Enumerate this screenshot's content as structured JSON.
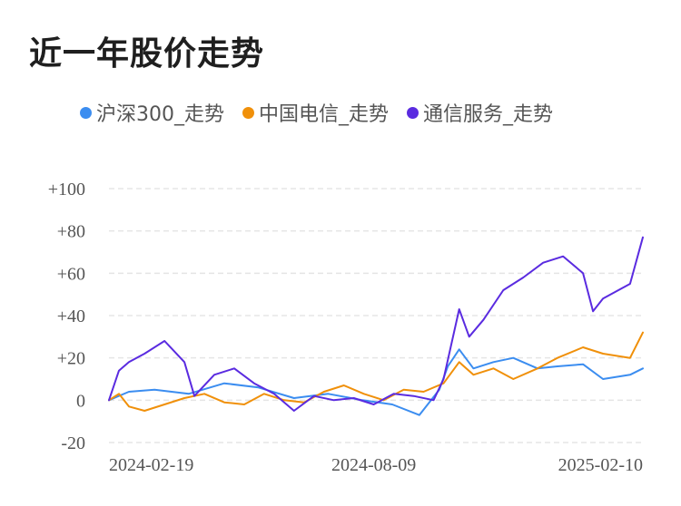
{
  "header": {
    "title": "近一年股价走势"
  },
  "colors": {
    "series": [
      "#3b8df0",
      "#f0900a",
      "#5a2be0"
    ],
    "grid": "#e5e5e5",
    "axis_text": "#555555"
  },
  "chart_data": {
    "type": "line",
    "title": "近一年股价走势",
    "xlabel": "",
    "ylabel": "",
    "ylim": [
      -20,
      100
    ],
    "yticks": [
      100,
      80,
      60,
      40,
      20,
      0,
      -20
    ],
    "ytick_labels": [
      "+100",
      "+80",
      "+60",
      "+40",
      "+20",
      "0",
      "-20"
    ],
    "xlim": [
      "2024-02-05",
      "2025-02-14"
    ],
    "xticks": [
      "2024-02-19",
      "2024-08-09",
      "2025-02-10"
    ],
    "grid": true,
    "legend_position": "top-left",
    "series": [
      {
        "name": "沪深300_走势",
        "color": "#3b8df0",
        "x": [
          "2024-02-05",
          "2024-02-19",
          "2024-03-08",
          "2024-04-01",
          "2024-04-26",
          "2024-05-20",
          "2024-06-14",
          "2024-07-08",
          "2024-08-01",
          "2024-08-22",
          "2024-09-10",
          "2024-09-24",
          "2024-09-30",
          "2024-10-08",
          "2024-10-18",
          "2024-11-01",
          "2024-11-15",
          "2024-12-02",
          "2024-12-16",
          "2025-01-03",
          "2025-01-17",
          "2025-02-05",
          "2025-02-14"
        ],
        "values": [
          0,
          4,
          5,
          3,
          8,
          6,
          1,
          3,
          0,
          -2,
          -7,
          5,
          16,
          24,
          15,
          18,
          20,
          15,
          16,
          17,
          10,
          12,
          15
        ]
      },
      {
        "name": "中国电信_走势",
        "color": "#f0900a",
        "x": [
          "2024-02-05",
          "2024-02-12",
          "2024-02-19",
          "2024-03-01",
          "2024-03-15",
          "2024-03-29",
          "2024-04-12",
          "2024-04-26",
          "2024-05-10",
          "2024-05-24",
          "2024-06-07",
          "2024-06-21",
          "2024-07-05",
          "2024-07-19",
          "2024-08-02",
          "2024-08-16",
          "2024-08-30",
          "2024-09-13",
          "2024-09-27",
          "2024-10-08",
          "2024-10-18",
          "2024-11-01",
          "2024-11-15",
          "2024-12-02",
          "2024-12-16",
          "2025-01-03",
          "2025-01-17",
          "2025-02-05",
          "2025-02-14"
        ],
        "values": [
          0,
          3,
          -3,
          -5,
          -2,
          1,
          3,
          -1,
          -2,
          3,
          0,
          -1,
          4,
          7,
          3,
          0,
          5,
          4,
          8,
          18,
          12,
          15,
          10,
          15,
          20,
          25,
          22,
          20,
          32
        ]
      },
      {
        "name": "通信服务_走势",
        "color": "#5a2be0",
        "x": [
          "2024-02-05",
          "2024-02-12",
          "2024-02-19",
          "2024-03-01",
          "2024-03-15",
          "2024-03-29",
          "2024-04-05",
          "2024-04-19",
          "2024-05-03",
          "2024-05-17",
          "2024-05-31",
          "2024-06-14",
          "2024-06-28",
          "2024-07-12",
          "2024-07-26",
          "2024-08-09",
          "2024-08-23",
          "2024-09-06",
          "2024-09-20",
          "2024-09-27",
          "2024-10-08",
          "2024-10-15",
          "2024-10-25",
          "2024-11-08",
          "2024-11-22",
          "2024-12-06",
          "2024-12-20",
          "2025-01-03",
          "2025-01-10",
          "2025-01-17",
          "2025-02-05",
          "2025-02-14"
        ],
        "values": [
          0,
          14,
          18,
          22,
          28,
          18,
          2,
          12,
          15,
          8,
          3,
          -5,
          2,
          0,
          1,
          -2,
          3,
          2,
          0,
          10,
          43,
          30,
          38,
          52,
          58,
          65,
          68,
          60,
          42,
          48,
          55,
          77
        ]
      }
    ]
  }
}
